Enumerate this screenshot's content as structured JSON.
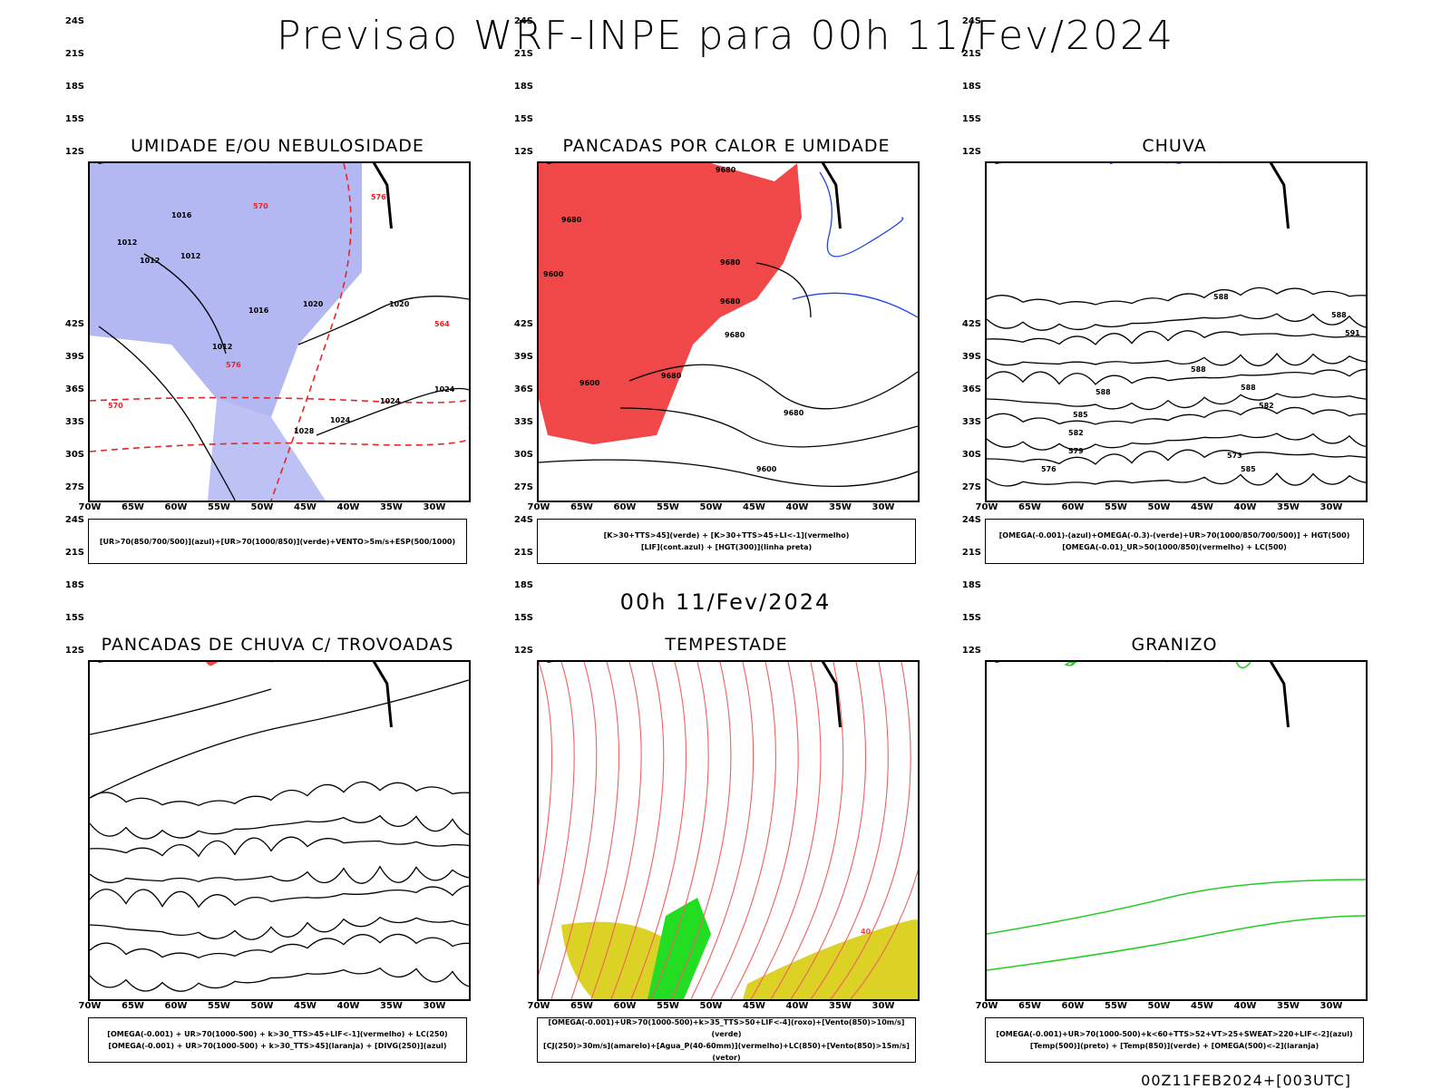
{
  "title": "Previsao WRF-INPE  para 00h 11/Fev/2024",
  "mid_title": "00h 11/Fev/2024",
  "footer": "00Z11FEB2024+[003UTC]",
  "lat_labels": [
    "12S",
    "15S",
    "18S",
    "21S",
    "24S",
    "27S",
    "30S",
    "33S",
    "36S",
    "39S",
    "42S"
  ],
  "lon_labels": [
    "70W",
    "65W",
    "60W",
    "55W",
    "50W",
    "45W",
    "40W",
    "35W",
    "30W"
  ],
  "colors": {
    "blue_shade": "#9aa0ee",
    "red_fill": "#f04848",
    "green_line": "#22cc22",
    "dark_green": "#1f4f48",
    "yellow": "#dcd225",
    "orange": "#f08820",
    "blue": "#2244ee"
  },
  "panels": [
    {
      "title": "UMIDADE E/OU NEBULOSIDADE",
      "legend": [
        "[UR>70(850/700/500)](azul)+[UR>70(1000/850)](verde)+VENTO>5m/s+ESP(500/1000)"
      ],
      "contour_labels": [
        "1016",
        "1012",
        "1012",
        "1012",
        "1020",
        "1020",
        "1016",
        "1012",
        "1024",
        "1024",
        "1028",
        "1024",
        "570",
        "576",
        "564",
        "570",
        "576"
      ]
    },
    {
      "title": "PANCADAS POR CALOR E UMIDADE",
      "legend": [
        "[K>30+TTS>45](verde) + [K>30+TTS>45+LI<-1](vermelho)",
        "[LIF](cont.azul) + [HGT(300)](linha preta)"
      ],
      "contour_labels": [
        "9680",
        "9680",
        "9600",
        "9680",
        "9680",
        "9680",
        "9680",
        "9600",
        "9680",
        "9600"
      ]
    },
    {
      "title": "CHUVA",
      "legend": [
        "[OMEGA(-0.001)-(azul)+OMEGA(-0.3)-(verde)+UR>70(1000/850/700/500)] + HGT(500)",
        "[OMEGA(-0.01)_UR>50(1000/850)(vermelho) + LC(500)"
      ],
      "contour_labels": [
        "588",
        "588",
        "588",
        "588",
        "591",
        "588",
        "585",
        "582",
        "579",
        "576",
        "573",
        "585",
        "582"
      ]
    },
    {
      "title": "PANCADAS DE CHUVA C/ TROVOADAS",
      "legend": [
        "[OMEGA(-0.001) + UR>70(1000-500) + k>30_TTS>45+LIF<-1](vermelho) + LC(250)",
        "[OMEGA(-0.001) + UR>70(1000-500) + k>30_TTS>45](laranja) + [DIVG(250)](azul)"
      ],
      "contour_labels": []
    },
    {
      "title": "TEMPESTADE",
      "legend": [
        "[OMEGA(-0.001)+UR>70(1000-500)+k>35_TTS>50+LIF<-4](roxo)+[Vento(850)>10m/s](verde)",
        "[CJ(250)>30m/s](amarelo)+[Agua_P(40-60mm)](vermelho)+LC(850)+[Vento(850)>15m/s](vetor)"
      ],
      "contour_labels": [
        "40"
      ]
    },
    {
      "title": "GRANIZO",
      "legend": [
        "[OMEGA(-0.001)+UR>70(1000-500)+k<60+TTS>52+VT>25+SWEAT>220+LIF<-2](azul)",
        "[Temp(500)](preto) + [Temp(850)](verde) + [OMEGA(500)<-2](laranja)"
      ],
      "contour_labels": []
    }
  ]
}
